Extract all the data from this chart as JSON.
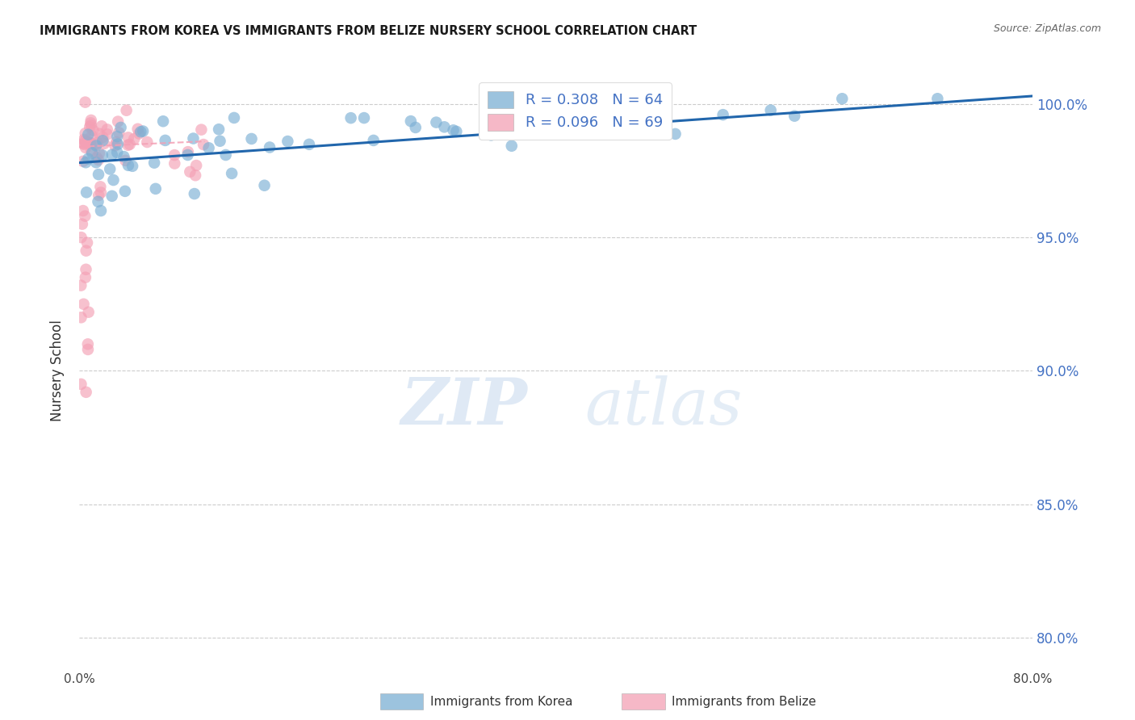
{
  "title": "IMMIGRANTS FROM KOREA VS IMMIGRANTS FROM BELIZE NURSERY SCHOOL CORRELATION CHART",
  "source": "Source: ZipAtlas.com",
  "ylabel": "Nursery School",
  "xlim": [
    0.0,
    0.8
  ],
  "ylim": [
    0.788,
    1.012
  ],
  "ytick_positions": [
    0.8,
    0.85,
    0.9,
    0.95,
    1.0
  ],
  "yticklabels": [
    "80.0%",
    "85.0%",
    "90.0%",
    "95.0%",
    "100.0%"
  ],
  "korea_color": "#7bafd4",
  "belize_color": "#f4a0b5",
  "korea_R": 0.308,
  "korea_N": 64,
  "belize_R": 0.096,
  "belize_N": 69,
  "legend_label_korea": "Immigrants from Korea",
  "legend_label_belize": "Immigrants from Belize",
  "watermark_zip": "ZIP",
  "watermark_atlas": "atlas",
  "korea_line_x": [
    0.0,
    0.8
  ],
  "korea_line_y": [
    0.978,
    1.003
  ],
  "belize_line_x": [
    0.0,
    0.105
  ],
  "belize_line_y": [
    0.984,
    0.986
  ]
}
